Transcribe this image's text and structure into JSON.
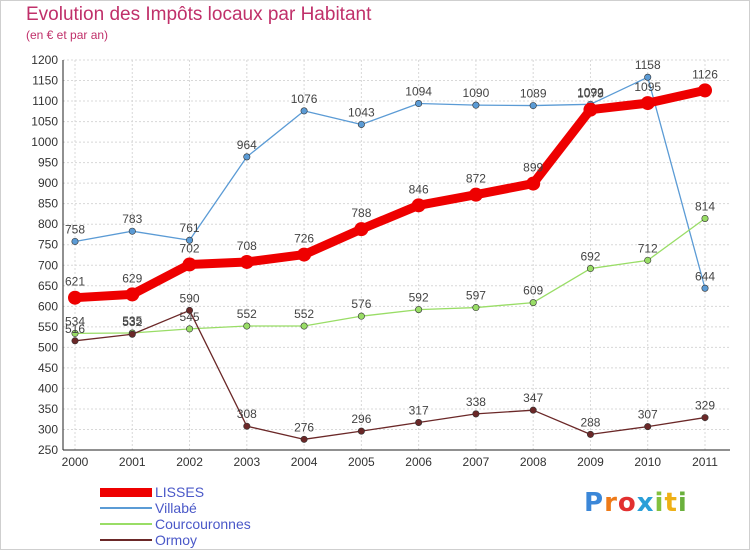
{
  "chart_data": {
    "type": "line",
    "title": "Evolution des Impôts locaux par Habitant",
    "subtitle": "(en € et par an)",
    "categories": [
      "2000",
      "2001",
      "2002",
      "2003",
      "2004",
      "2005",
      "2006",
      "2007",
      "2008",
      "2009",
      "2010",
      "2011"
    ],
    "ylim": [
      250,
      1200
    ],
    "ytick_step": 50,
    "grid": true,
    "legend_position": "bottom-left",
    "series": [
      {
        "name": "Villabé",
        "color": "#5b9bd5",
        "values": [
          758,
          783,
          761,
          964,
          1076,
          1043,
          1094,
          1090,
          1089,
          1092,
          1158,
          644
        ],
        "labels": [
          "758",
          "783",
          "761",
          "964",
          "1076",
          "1043",
          "1094",
          "1090",
          "1089",
          "1092",
          "1158",
          "644"
        ]
      },
      {
        "name": "Courcouronnes",
        "color": "#99dd66",
        "values": [
          534,
          535,
          545,
          552,
          552,
          576,
          592,
          597,
          609,
          692,
          712,
          814
        ],
        "labels": [
          "534",
          "535",
          "545",
          "552",
          "552",
          "576",
          "592",
          "597",
          "609",
          "692",
          "712",
          "814"
        ]
      },
      {
        "name": "Ormoy",
        "color": "#6b2828",
        "values": [
          516,
          532,
          590,
          308,
          276,
          296,
          317,
          338,
          347,
          288,
          307,
          329
        ],
        "labels": [
          "516",
          "532",
          "590",
          "308",
          "276",
          "296",
          "317",
          "338",
          "347",
          "288",
          "307",
          "329"
        ]
      },
      {
        "name": "LISSES",
        "color": "#ee0000",
        "values": [
          621,
          629,
          702,
          708,
          726,
          788,
          846,
          872,
          899,
          1079,
          1095,
          1126
        ],
        "labels": [
          "621",
          "629",
          "702",
          "708",
          "726",
          "788",
          "846",
          "872",
          "899",
          "1079",
          "1095",
          "1126"
        ]
      }
    ]
  },
  "legend_order": [
    "LISSES",
    "Villabé",
    "Courcouronnes",
    "Ormoy"
  ],
  "logo": {
    "letters": [
      "P",
      "r",
      "o",
      "x",
      "i",
      "t",
      "i"
    ],
    "colors": [
      "#3b87d8",
      "#ee7a18",
      "#e23030",
      "#2a9fd8",
      "#83c13e",
      "#eeb016",
      "#6ab03c"
    ]
  }
}
